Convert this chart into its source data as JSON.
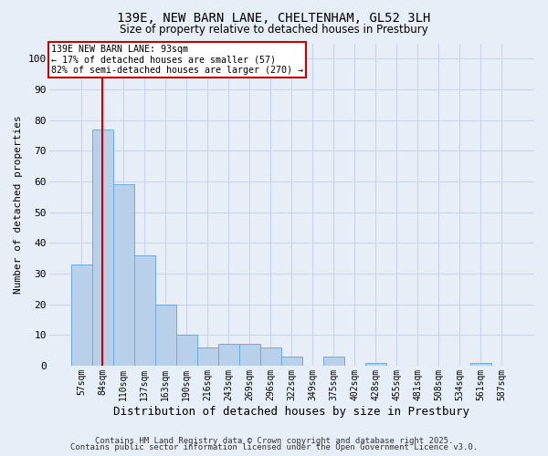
{
  "title": "139E, NEW BARN LANE, CHELTENHAM, GL52 3LH",
  "subtitle": "Size of property relative to detached houses in Prestbury",
  "xlabel": "Distribution of detached houses by size in Prestbury",
  "ylabel": "Number of detached properties",
  "categories": [
    "57sqm",
    "84sqm",
    "110sqm",
    "137sqm",
    "163sqm",
    "190sqm",
    "216sqm",
    "243sqm",
    "269sqm",
    "296sqm",
    "322sqm",
    "349sqm",
    "375sqm",
    "402sqm",
    "428sqm",
    "455sqm",
    "481sqm",
    "508sqm",
    "534sqm",
    "561sqm",
    "587sqm"
  ],
  "values": [
    33,
    77,
    59,
    36,
    20,
    10,
    6,
    7,
    7,
    6,
    3,
    0,
    3,
    0,
    1,
    0,
    0,
    0,
    0,
    1,
    0
  ],
  "bar_color": "#b8d0ea",
  "bar_edge_color": "#6aabdd",
  "bar_edge_width": 0.7,
  "vline_x_index": 1,
  "vline_color": "#cc0000",
  "annotation_text_line1": "139E NEW BARN LANE: 93sqm",
  "annotation_text_line2": "← 17% of detached houses are smaller (57)",
  "annotation_text_line3": "82% of semi-detached houses are larger (270) →",
  "annotation_box_color": "#cc0000",
  "annotation_box_facecolor": "#ffffff",
  "ylim": [
    0,
    105
  ],
  "yticks": [
    0,
    10,
    20,
    30,
    40,
    50,
    60,
    70,
    80,
    90,
    100
  ],
  "grid_color": "#c8d4e8",
  "bg_color": "#e8eef8",
  "footer_text1": "Contains HM Land Registry data © Crown copyright and database right 2025.",
  "footer_text2": "Contains public sector information licensed under the Open Government Licence v3.0."
}
